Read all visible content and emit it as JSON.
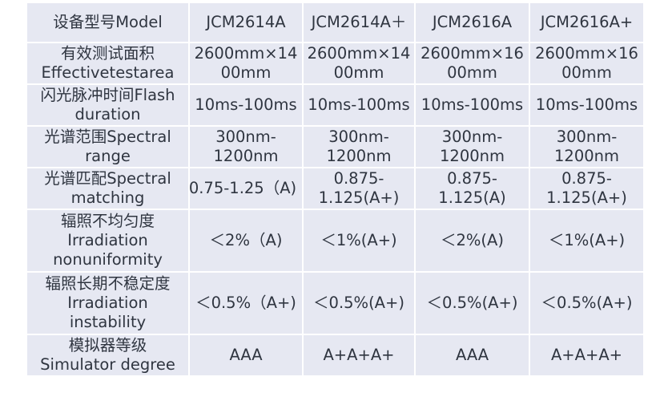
{
  "table": {
    "header": [
      "设备型号Model",
      "JCM2614A",
      "JCM2614A＋",
      "JCM2616A",
      "JCM2616A+"
    ],
    "rows": [
      {
        "label": [
          "有效测试面积",
          "Effectivetestarea"
        ],
        "values": [
          [
            "2600mm×14",
            "00mm"
          ],
          [
            "2600mm×14",
            "00mm"
          ],
          [
            "2600mm×16",
            "00mm"
          ],
          [
            "2600mm×16",
            "00mm"
          ]
        ]
      },
      {
        "label": [
          "闪光脉冲时间Flash",
          "duration"
        ],
        "values": [
          [
            "10ms-100ms"
          ],
          [
            "10ms-100ms"
          ],
          [
            "10ms-100ms"
          ],
          [
            "10ms-100ms"
          ]
        ]
      },
      {
        "label": [
          "光谱范围Spectral",
          "range"
        ],
        "values": [
          [
            "300nm-",
            "1200nm"
          ],
          [
            "300nm-",
            "1200nm"
          ],
          [
            "300nm-",
            "1200nm"
          ],
          [
            "300nm-",
            "1200nm"
          ]
        ]
      },
      {
        "label": [
          "光谱匹配Spectral",
          "matching"
        ],
        "values": [
          [
            "0.75-1.25（A)"
          ],
          [
            "0.875-",
            "1.125(A+)"
          ],
          [
            "0.875-",
            "1.125(A)"
          ],
          [
            "0.875-",
            "1.125(A+)"
          ]
        ]
      },
      {
        "label": [
          "辐照不均匀度",
          "Irradiation",
          "nonuniformity"
        ],
        "values": [
          [
            "＜2%（A)"
          ],
          [
            "＜1%(A+)"
          ],
          [
            "＜2%(A)"
          ],
          [
            "＜1%(A+)"
          ]
        ]
      },
      {
        "label": [
          "辐照长期不稳定度",
          "Irradiation",
          "instability"
        ],
        "values": [
          [
            "＜0.5%（A+)"
          ],
          [
            "＜0.5%(A+)"
          ],
          [
            "＜0.5%(A+)"
          ],
          [
            "＜0.5%(A+)"
          ]
        ]
      },
      {
        "label": [
          "模拟器等级",
          "Simulator degree"
        ],
        "values": [
          [
            "AAA"
          ],
          [
            "A+A+A+"
          ],
          [
            "AAA"
          ],
          [
            "A+A+A+"
          ]
        ]
      }
    ]
  },
  "colors": {
    "cell_background": "#e6e8f2",
    "text": "#2f3540",
    "grid_lines": "#ffffff"
  }
}
